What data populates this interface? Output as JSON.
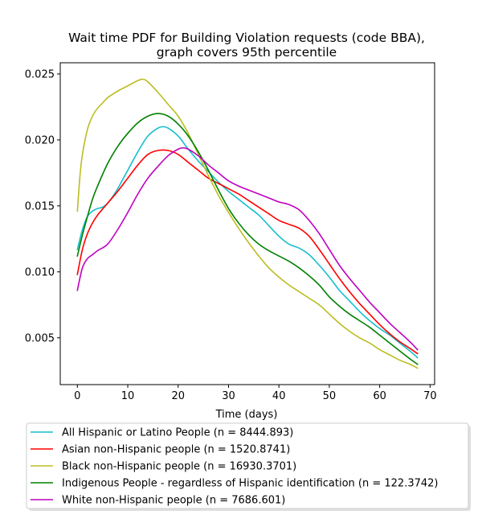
{
  "chart_data": {
    "type": "line",
    "title_line1": "Wait time PDF for Building Violation  requests (code BBA),",
    "title_line2": "graph covers 95th percentile",
    "xlabel": "Time (days)",
    "ylabel": "",
    "xlim": [
      -3.4,
      70.9
    ],
    "ylim": [
      0.00145,
      0.02585
    ],
    "xticks": [
      0,
      10,
      20,
      30,
      40,
      50,
      60,
      70
    ],
    "yticks": [
      0.005,
      0.01,
      0.015,
      0.02,
      0.025
    ],
    "ytick_labels": [
      "0.005",
      "0.010",
      "0.015",
      "0.020",
      "0.025"
    ],
    "grid": false,
    "legend_position": "below",
    "series": [
      {
        "name": "All Hispanic or Latino People (n = 8444.893)",
        "color": "#17becf",
        "x": [
          0,
          1,
          2,
          3,
          4,
          5,
          6,
          7,
          8,
          9,
          10,
          12,
          14,
          16,
          17,
          18,
          20,
          22,
          24,
          26,
          28,
          30,
          32,
          34,
          36,
          38,
          40,
          42,
          44,
          46,
          48,
          50,
          52,
          54,
          56,
          58,
          60,
          62,
          64,
          66,
          67.5
        ],
        "y": [
          0.0117,
          0.0132,
          0.0142,
          0.0146,
          0.0148,
          0.0149,
          0.0152,
          0.0157,
          0.0163,
          0.017,
          0.0177,
          0.0191,
          0.0203,
          0.0209,
          0.021,
          0.0209,
          0.0203,
          0.0193,
          0.0184,
          0.0176,
          0.0168,
          0.0161,
          0.0155,
          0.0149,
          0.0143,
          0.0135,
          0.0127,
          0.0121,
          0.0118,
          0.0113,
          0.0105,
          0.0096,
          0.0086,
          0.0078,
          0.007,
          0.0063,
          0.0057,
          0.0052,
          0.0046,
          0.004,
          0.0035
        ]
      },
      {
        "name": "Asian non-Hispanic people (n = 1520.8741)",
        "color": "#ff0000",
        "x": [
          0,
          1,
          2,
          3,
          4,
          6,
          8,
          10,
          12,
          14,
          16,
          18,
          20,
          22,
          24,
          26,
          28,
          30,
          32,
          34,
          36,
          38,
          40,
          42,
          44,
          46,
          48,
          50,
          52,
          54,
          56,
          58,
          60,
          62,
          64,
          66,
          67.5
        ],
        "y": [
          0.0098,
          0.0117,
          0.0129,
          0.0137,
          0.0143,
          0.0152,
          0.0161,
          0.0171,
          0.0181,
          0.0189,
          0.0192,
          0.0192,
          0.0189,
          0.0183,
          0.0177,
          0.0171,
          0.0167,
          0.0163,
          0.0159,
          0.0154,
          0.0149,
          0.0144,
          0.0139,
          0.0136,
          0.0133,
          0.0127,
          0.0117,
          0.0106,
          0.0095,
          0.0085,
          0.0076,
          0.0068,
          0.006,
          0.0053,
          0.0047,
          0.0042,
          0.0038
        ]
      },
      {
        "name": "Black non-Hispanic people (n = 16930.3701)",
        "color": "#bcbd22",
        "x": [
          0,
          0.5,
          1,
          2,
          3,
          4,
          5,
          6,
          8,
          10,
          12,
          13,
          14,
          16,
          18,
          20,
          22,
          24,
          26,
          28,
          30,
          32,
          34,
          36,
          38,
          40,
          42,
          44,
          46,
          48,
          50,
          52,
          54,
          56,
          58,
          60,
          62,
          64,
          66,
          67.5
        ],
        "y": [
          0.0146,
          0.0172,
          0.0189,
          0.0208,
          0.0218,
          0.0224,
          0.0228,
          0.0232,
          0.0237,
          0.0241,
          0.0245,
          0.0246,
          0.0244,
          0.0236,
          0.0227,
          0.0218,
          0.0205,
          0.0189,
          0.0173,
          0.0158,
          0.0145,
          0.0133,
          0.0122,
          0.0112,
          0.0103,
          0.0096,
          0.009,
          0.0085,
          0.008,
          0.0075,
          0.0068,
          0.0061,
          0.0055,
          0.005,
          0.0046,
          0.0041,
          0.0037,
          0.0033,
          0.003,
          0.0027
        ]
      },
      {
        "name": "Indigenous People - regardless of Hispanic identification (n = 122.3742)",
        "color": "#008000",
        "x": [
          0,
          1,
          2,
          3,
          4,
          6,
          8,
          10,
          12,
          14,
          16,
          18,
          20,
          22,
          24,
          26,
          28,
          30,
          32,
          34,
          36,
          38,
          40,
          42,
          44,
          46,
          48,
          50,
          52,
          54,
          56,
          58,
          60,
          62,
          64,
          66,
          67.5
        ],
        "y": [
          0.0112,
          0.0128,
          0.0142,
          0.0155,
          0.0165,
          0.0182,
          0.0195,
          0.0205,
          0.0213,
          0.0218,
          0.022,
          0.0218,
          0.0212,
          0.0203,
          0.0191,
          0.0177,
          0.0162,
          0.0148,
          0.0137,
          0.0128,
          0.0121,
          0.0116,
          0.0112,
          0.0108,
          0.0103,
          0.0097,
          0.009,
          0.0081,
          0.0074,
          0.0068,
          0.0063,
          0.0058,
          0.0052,
          0.0046,
          0.004,
          0.0034,
          0.003
        ]
      },
      {
        "name": "White non-Hispanic people (n = 7686.601)",
        "color": "#bf00bf",
        "x": [
          0,
          1,
          2,
          3,
          4,
          6,
          8,
          10,
          12,
          14,
          16,
          18,
          20,
          21,
          22,
          24,
          26,
          28,
          30,
          32,
          34,
          36,
          38,
          40,
          42,
          44,
          46,
          48,
          50,
          52,
          54,
          56,
          58,
          60,
          62,
          64,
          66,
          67.5
        ],
        "y": [
          0.0086,
          0.0103,
          0.011,
          0.0113,
          0.0116,
          0.0121,
          0.0132,
          0.0145,
          0.0159,
          0.0171,
          0.018,
          0.0188,
          0.0193,
          0.0194,
          0.0193,
          0.0188,
          0.0181,
          0.0175,
          0.0169,
          0.0165,
          0.0162,
          0.0159,
          0.0156,
          0.0153,
          0.0151,
          0.0147,
          0.0139,
          0.0129,
          0.0117,
          0.0105,
          0.0095,
          0.0086,
          0.0077,
          0.0069,
          0.0061,
          0.0054,
          0.0047,
          0.0041
        ]
      }
    ]
  }
}
